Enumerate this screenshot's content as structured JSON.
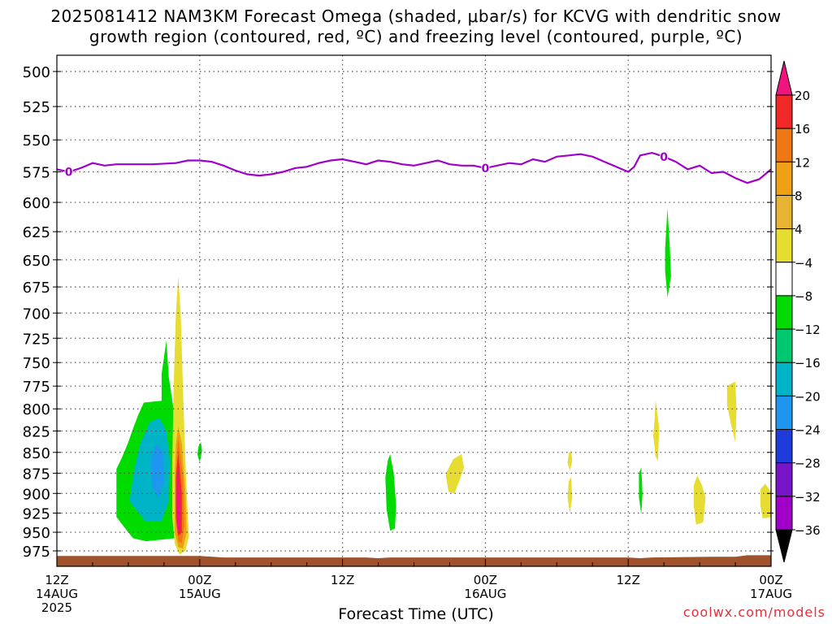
{
  "title_line1": "2025081412 NAM3KM Forecast Omega (shaded, μbar/s) for KCVG with dendritic snow",
  "title_line2": "growth region (contoured, red, ºC) and freezing level (contoured, purple, ºC)",
  "x_axis_title": "Forecast Time (UTC)",
  "credit": "coolwx.com/models",
  "colors": {
    "freezing_level": "#a000c8",
    "terrain": "#a0522d",
    "grid": "#555555"
  },
  "chart_data": {
    "type": "time-height cross section",
    "title": "2025081412 NAM3KM Forecast Omega (shaded, μbar/s) for KCVG with dendritic snow growth region (contoured, red, ºC) and freezing level (contoured, purple, ºC)",
    "xlabel": "Forecast Time (UTC)",
    "ylabel": "",
    "x_range_hours": [
      0,
      60
    ],
    "y_range_hPa": [
      487,
      990
    ],
    "y_scale": "inverted pressure",
    "grid": true,
    "y_ticks": [
      500,
      525,
      550,
      575,
      600,
      625,
      650,
      675,
      700,
      725,
      750,
      775,
      800,
      825,
      850,
      875,
      900,
      925,
      950,
      975
    ],
    "x_ticks": [
      {
        "hour": 0,
        "lines": [
          "12Z",
          "14AUG",
          "2025"
        ]
      },
      {
        "hour": 12,
        "lines": [
          "00Z",
          "15AUG"
        ]
      },
      {
        "hour": 24,
        "lines": [
          "12Z"
        ]
      },
      {
        "hour": 36,
        "lines": [
          "00Z",
          "16AUG"
        ]
      },
      {
        "hour": 48,
        "lines": [
          "12Z"
        ]
      },
      {
        "hour": 60,
        "lines": [
          "00Z",
          "17AUG"
        ]
      }
    ],
    "colorbar": {
      "levels": [
        20,
        16,
        12,
        8,
        4,
        -4,
        -8,
        -12,
        -16,
        -20,
        -24,
        -28,
        -32,
        -36
      ],
      "colors": [
        "#f0147f",
        "#f02828",
        "#f07814",
        "#f0a014",
        "#e6b432",
        "#e6dc32",
        "#ffffff",
        "#00dc00",
        "#00c870",
        "#00b4c8",
        "#1e96f0",
        "#1e3cdc",
        "#7814c8",
        "#a000c8",
        "#a0a0a0",
        "#000000"
      ]
    },
    "freezing_level": {
      "label": "0",
      "points": [
        [
          0,
          573
        ],
        [
          1,
          575
        ],
        [
          2,
          572
        ],
        [
          3,
          568
        ],
        [
          4,
          570
        ],
        [
          5,
          569
        ],
        [
          8,
          569
        ],
        [
          10,
          568
        ],
        [
          11,
          566
        ],
        [
          12,
          566
        ],
        [
          13,
          567
        ],
        [
          14,
          570
        ],
        [
          15,
          574
        ],
        [
          16,
          577
        ],
        [
          17,
          578
        ],
        [
          18,
          577
        ],
        [
          19,
          575
        ],
        [
          20,
          572
        ],
        [
          21,
          571
        ],
        [
          22,
          568
        ],
        [
          23,
          566
        ],
        [
          24,
          565
        ],
        [
          25,
          567
        ],
        [
          26,
          569
        ],
        [
          27,
          566
        ],
        [
          28,
          567
        ],
        [
          29,
          569
        ],
        [
          30,
          570
        ],
        [
          31,
          568
        ],
        [
          32,
          566
        ],
        [
          33,
          569
        ],
        [
          34,
          570
        ],
        [
          35,
          570
        ],
        [
          36,
          572
        ],
        [
          37,
          570
        ],
        [
          38,
          568
        ],
        [
          39,
          569
        ],
        [
          40,
          565
        ],
        [
          41,
          567
        ],
        [
          42,
          563
        ],
        [
          43,
          562
        ],
        [
          44,
          561
        ],
        [
          45,
          563
        ],
        [
          46,
          567
        ],
        [
          47,
          571
        ],
        [
          48,
          575
        ],
        [
          48.5,
          571
        ],
        [
          49,
          562
        ],
        [
          50,
          560
        ],
        [
          51,
          563
        ],
        [
          52,
          567
        ],
        [
          53,
          573
        ],
        [
          54,
          570
        ],
        [
          55,
          576
        ],
        [
          56,
          575
        ],
        [
          57,
          580
        ],
        [
          58,
          584
        ],
        [
          59,
          581
        ],
        [
          60,
          573
        ]
      ],
      "label_hours": [
        1,
        36,
        51
      ]
    },
    "omega_regions": [
      {
        "name": "uplift cluster 14AUG evening",
        "type": "negative",
        "level": -8,
        "pts": [
          [
            5.0,
            870
          ],
          [
            5.5,
            855
          ],
          [
            6.0,
            838
          ],
          [
            6.4,
            822
          ],
          [
            6.8,
            808
          ],
          [
            7.3,
            793
          ],
          [
            8.8,
            791
          ],
          [
            8.8,
            762
          ],
          [
            9.2,
            727
          ],
          [
            9.4,
            765
          ],
          [
            9.8,
            800
          ],
          [
            10.0,
            860
          ],
          [
            10.0,
            920
          ],
          [
            9.9,
            958
          ],
          [
            7.5,
            962
          ],
          [
            6.4,
            958
          ],
          [
            5.9,
            948
          ],
          [
            5.0,
            930
          ]
        ]
      },
      {
        "name": "uplift cluster core",
        "type": "negative",
        "level": -12,
        "pts": [
          [
            6.1,
            910
          ],
          [
            6.5,
            870
          ],
          [
            7.0,
            840
          ],
          [
            7.8,
            815
          ],
          [
            8.6,
            810
          ],
          [
            9.2,
            825
          ],
          [
            9.5,
            860
          ],
          [
            9.4,
            910
          ],
          [
            8.8,
            935
          ],
          [
            7.4,
            935
          ]
        ]
      },
      {
        "name": "uplift cluster max",
        "type": "negative",
        "level": -16,
        "pts": [
          [
            8.0,
            890
          ],
          [
            7.9,
            860
          ],
          [
            8.3,
            840
          ],
          [
            8.9,
            848
          ],
          [
            9.0,
            885
          ],
          [
            8.5,
            905
          ]
        ]
      },
      {
        "name": "sinking plume 15AUG",
        "type": "positive",
        "level": 4,
        "pts": [
          [
            10.0,
            700
          ],
          [
            10.2,
            665
          ],
          [
            10.4,
            700
          ],
          [
            10.6,
            780
          ],
          [
            10.8,
            860
          ],
          [
            11.0,
            930
          ],
          [
            11.1,
            955
          ],
          [
            10.8,
            975
          ],
          [
            10.3,
            980
          ],
          [
            9.9,
            965
          ],
          [
            9.7,
            930
          ],
          [
            9.7,
            860
          ],
          [
            9.8,
            780
          ]
        ]
      },
      {
        "name": "plume 8",
        "type": "positive",
        "level": 8,
        "pts": [
          [
            10.2,
            820
          ],
          [
            10.5,
            840
          ],
          [
            10.8,
            900
          ],
          [
            10.9,
            950
          ],
          [
            10.6,
            972
          ],
          [
            10.2,
            970
          ],
          [
            9.9,
            950
          ],
          [
            9.9,
            880
          ],
          [
            10.0,
            840
          ]
        ]
      },
      {
        "name": "plume 12",
        "type": "positive",
        "level": 12,
        "pts": [
          [
            10.2,
            832
          ],
          [
            10.6,
            880
          ],
          [
            10.7,
            940
          ],
          [
            10.5,
            965
          ],
          [
            10.2,
            962
          ],
          [
            10.0,
            935
          ],
          [
            10.0,
            870
          ]
        ]
      },
      {
        "name": "plume 16",
        "type": "positive",
        "level": 16,
        "pts": [
          [
            10.2,
            850
          ],
          [
            10.5,
            900
          ],
          [
            10.5,
            950
          ],
          [
            10.2,
            955
          ],
          [
            10.0,
            930
          ],
          [
            10.0,
            880
          ]
        ]
      },
      {
        "name": "plume 20",
        "type": "positive",
        "level": 20,
        "pts": [
          [
            10.15,
            870
          ],
          [
            10.4,
            920
          ],
          [
            10.3,
            950
          ],
          [
            10.1,
            945
          ],
          [
            10.0,
            905
          ]
        ]
      },
      {
        "name": "small uplift 00Z",
        "type": "negative",
        "level": -8,
        "pts": [
          [
            11.9,
            843
          ],
          [
            12.1,
            838
          ],
          [
            12.2,
            848
          ],
          [
            12.0,
            862
          ],
          [
            11.8,
            852
          ]
        ]
      },
      {
        "name": "uplift 15AUG afternoon",
        "type": "negative",
        "level": -8,
        "pts": [
          [
            27.8,
            860
          ],
          [
            28.0,
            852
          ],
          [
            28.3,
            875
          ],
          [
            28.5,
            915
          ],
          [
            28.4,
            945
          ],
          [
            28.0,
            948
          ],
          [
            27.7,
            920
          ],
          [
            27.6,
            880
          ]
        ]
      },
      {
        "name": "sinking 15AUG evening",
        "type": "positive",
        "level": 4,
        "pts": [
          [
            32.7,
            875
          ],
          [
            33.3,
            858
          ],
          [
            34.0,
            852
          ],
          [
            34.2,
            868
          ],
          [
            33.8,
            885
          ],
          [
            33.4,
            900
          ],
          [
            32.9,
            898
          ],
          [
            32.7,
            880
          ]
        ]
      },
      {
        "name": "sinking 16AUG a",
        "type": "positive",
        "level": 4,
        "pts": [
          [
            43.0,
            852
          ],
          [
            43.2,
            848
          ],
          [
            43.3,
            860
          ],
          [
            43.1,
            872
          ],
          [
            42.9,
            862
          ]
        ]
      },
      {
        "name": "sinking 16AUG b",
        "type": "positive",
        "level": 4,
        "pts": [
          [
            43.0,
            885
          ],
          [
            43.2,
            880
          ],
          [
            43.3,
            905
          ],
          [
            43.1,
            925
          ],
          [
            42.9,
            905
          ]
        ]
      },
      {
        "name": "uplift 16AUG",
        "type": "negative",
        "level": -8,
        "pts": [
          [
            48.9,
            875
          ],
          [
            49.1,
            868
          ],
          [
            49.2,
            900
          ],
          [
            49.1,
            927
          ],
          [
            48.9,
            905
          ]
        ]
      },
      {
        "name": "sinking 16AUG c",
        "type": "positive",
        "level": 4,
        "pts": [
          [
            50.2,
            815
          ],
          [
            50.3,
            790
          ],
          [
            50.6,
            822
          ],
          [
            50.5,
            860
          ],
          [
            50.3,
            855
          ],
          [
            50.1,
            830
          ]
        ]
      },
      {
        "name": "uplift 17AUG mid",
        "type": "negative",
        "level": -8,
        "pts": [
          [
            51.1,
            640
          ],
          [
            51.3,
            605
          ],
          [
            51.5,
            640
          ],
          [
            51.6,
            665
          ],
          [
            51.3,
            685
          ],
          [
            51.1,
            660
          ]
        ]
      },
      {
        "name": "sinking 16AUG d",
        "type": "positive",
        "level": 4,
        "pts": [
          [
            53.5,
            890
          ],
          [
            53.8,
            878
          ],
          [
            54.2,
            890
          ],
          [
            54.5,
            905
          ],
          [
            54.3,
            937
          ],
          [
            53.7,
            940
          ],
          [
            53.5,
            915
          ]
        ]
      },
      {
        "name": "sinking 16AUG e",
        "type": "positive",
        "level": 4,
        "pts": [
          [
            56.3,
            775
          ],
          [
            57.0,
            770
          ],
          [
            57.1,
            800
          ],
          [
            57.0,
            838
          ],
          [
            56.6,
            815
          ],
          [
            56.3,
            795
          ]
        ]
      },
      {
        "name": "sinking 16AUG f",
        "type": "positive",
        "level": 4,
        "pts": [
          [
            59.1,
            895
          ],
          [
            59.5,
            888
          ],
          [
            60.0,
            898
          ],
          [
            60.0,
            930
          ],
          [
            59.3,
            932
          ],
          [
            59.1,
            915
          ]
        ]
      }
    ],
    "terrain_top_hPa": [
      [
        0,
        982
      ],
      [
        12,
        982
      ],
      [
        14,
        984
      ],
      [
        26,
        984
      ],
      [
        27,
        985
      ],
      [
        28,
        984
      ],
      [
        48,
        984
      ],
      [
        49,
        985
      ],
      [
        50,
        984
      ],
      [
        55,
        983
      ],
      [
        57,
        983
      ],
      [
        58,
        981
      ],
      [
        60,
        981
      ]
    ]
  }
}
